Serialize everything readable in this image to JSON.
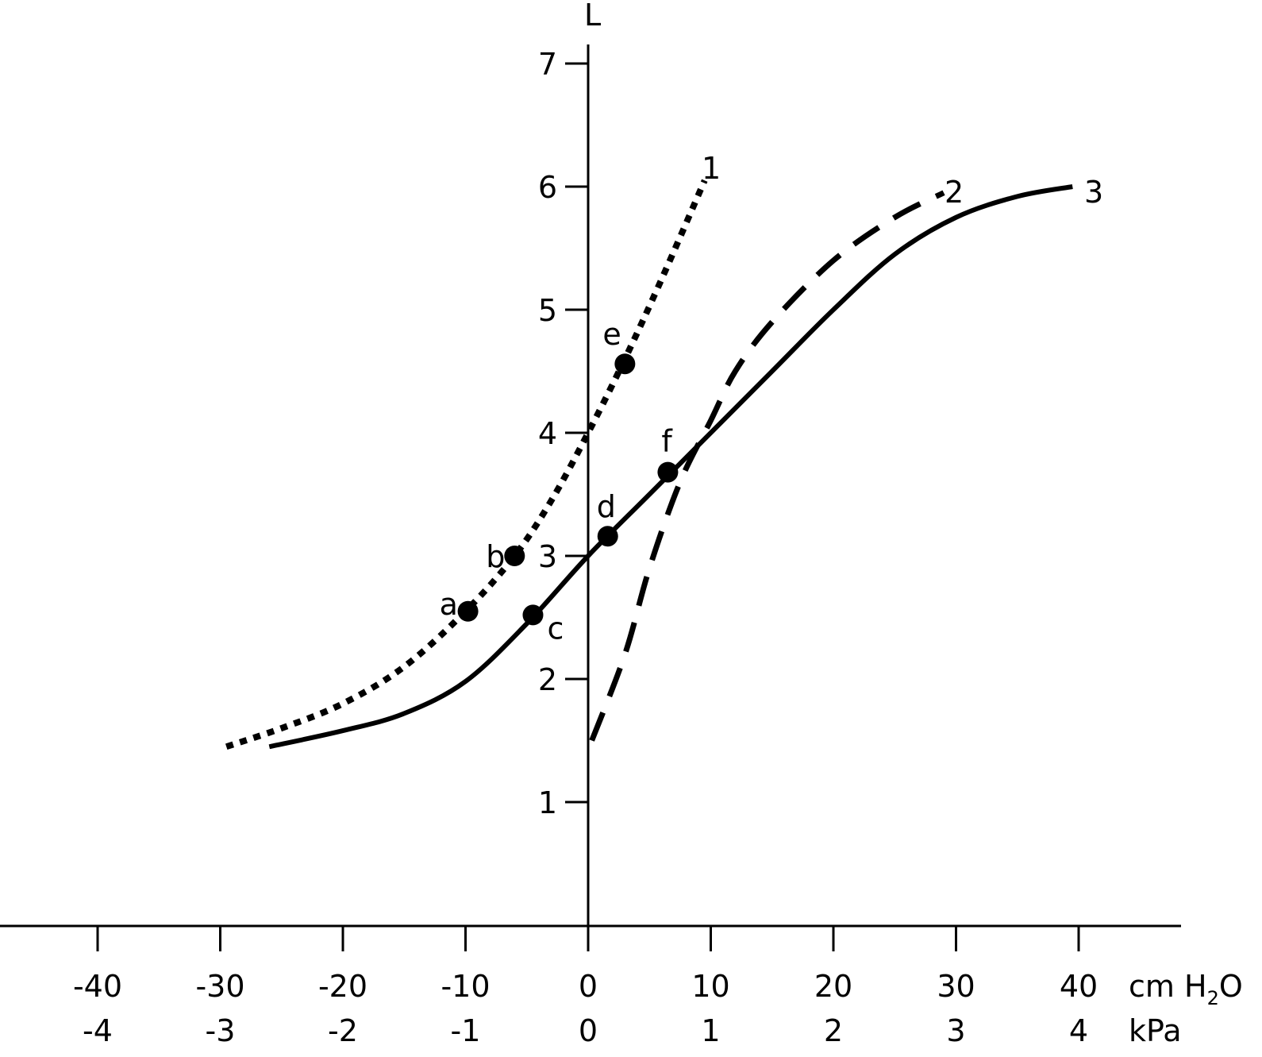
{
  "chart_data": {
    "type": "line",
    "title": "",
    "xlabel": "cm H2O",
    "xlabel_secondary": "kPa",
    "ylabel": "L",
    "xlim": [
      -48,
      48
    ],
    "ylim": [
      0,
      7.2
    ],
    "grid": false,
    "x_ticks": [
      -40,
      -30,
      -20,
      -10,
      0,
      10,
      20,
      30,
      40
    ],
    "x_tick_labels": [
      "-40",
      "-30",
      "-20",
      "-10",
      "0",
      "10",
      "20",
      "30",
      "40"
    ],
    "x_tick_labels_kpa": [
      "-4",
      "-3",
      "-2",
      "-1",
      "0",
      "1",
      "2",
      "3",
      "4"
    ],
    "y_ticks": [
      1,
      2,
      3,
      4,
      5,
      6,
      7
    ],
    "y_tick_labels": [
      "1",
      "2",
      "3",
      "4",
      "5",
      "6",
      "7"
    ],
    "series": [
      {
        "name": "1",
        "style": "dotted",
        "x": [
          -29.5,
          -25,
          -20,
          -15,
          -10,
          -6,
          -3,
          0,
          3,
          6,
          9.5
        ],
        "y": [
          1.45,
          1.6,
          1.8,
          2.1,
          2.55,
          3.0,
          3.45,
          4.0,
          4.6,
          5.25,
          6.05
        ]
      },
      {
        "name": "2",
        "style": "dashed",
        "x": [
          0.3,
          3,
          5,
          7.5,
          10,
          12,
          15,
          20,
          25,
          29
        ],
        "y": [
          1.5,
          2.2,
          2.9,
          3.6,
          4.1,
          4.5,
          4.9,
          5.4,
          5.75,
          5.95
        ]
      },
      {
        "name": "3",
        "style": "solid",
        "x": [
          -26,
          -20,
          -15,
          -10,
          -5,
          0,
          5,
          10,
          15,
          20,
          25,
          30,
          35,
          39.5
        ],
        "y": [
          1.45,
          1.58,
          1.72,
          1.98,
          2.45,
          3.0,
          3.5,
          4.0,
          4.5,
          5.0,
          5.45,
          5.75,
          5.92,
          6.0
        ]
      }
    ],
    "annotations": [
      {
        "label": "a",
        "x": -9.8,
        "y": 2.55,
        "series": "1"
      },
      {
        "label": "b",
        "x": -6.0,
        "y": 3.0,
        "series": "1"
      },
      {
        "label": "c",
        "x": -4.5,
        "y": 2.52,
        "series": "3"
      },
      {
        "label": "d",
        "x": 1.6,
        "y": 3.16,
        "series": "3"
      },
      {
        "label": "e",
        "x": 3.0,
        "y": 4.56,
        "series": "1"
      },
      {
        "label": "f",
        "x": 6.5,
        "y": 3.68,
        "series": "3"
      }
    ]
  },
  "axes": {
    "y_label": "L",
    "x_unit_primary": "cm H",
    "x_unit_sub": "2",
    "x_unit_tail": "O",
    "x_unit_secondary": "kPa"
  },
  "curve_labels": [
    "1",
    "2",
    "3"
  ],
  "point_labels": [
    "a",
    "b",
    "c",
    "d",
    "e",
    "f"
  ]
}
